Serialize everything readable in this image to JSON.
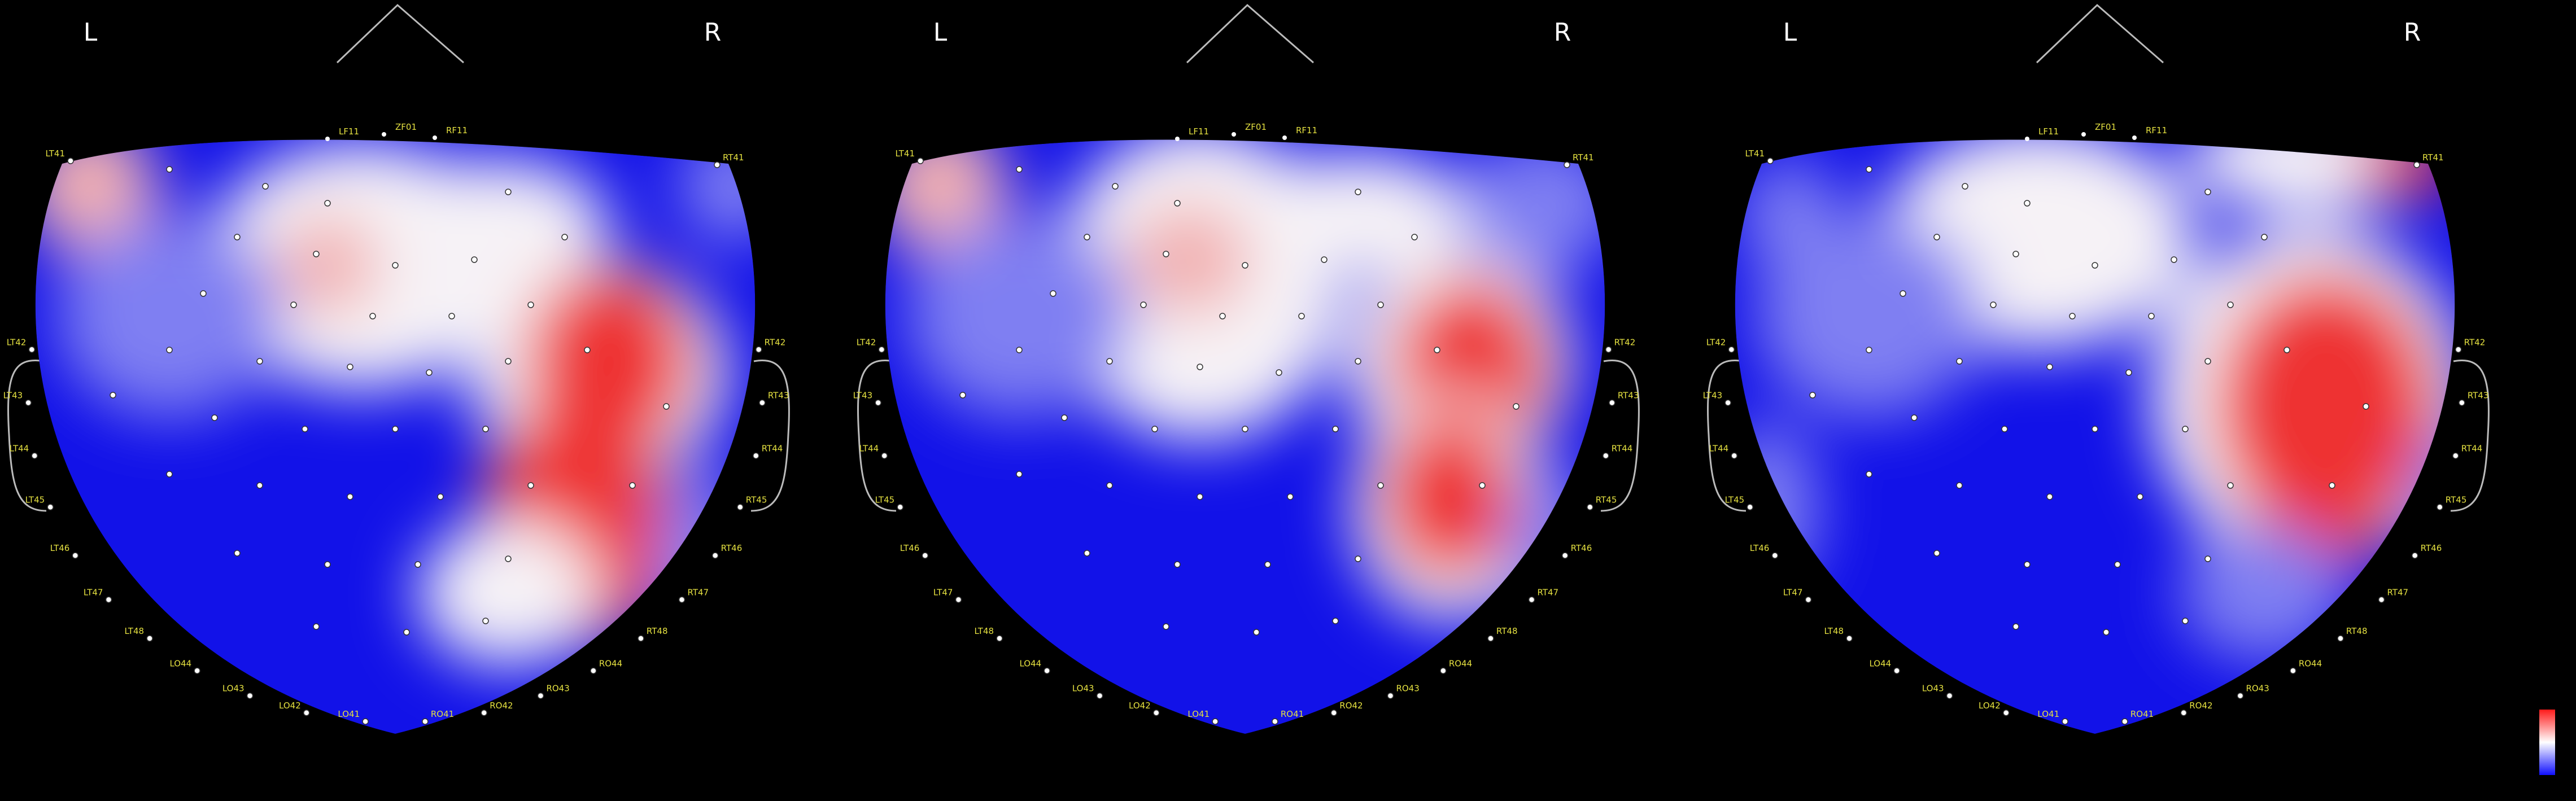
{
  "panels": [
    {
      "left_label": "L",
      "right_label": "R",
      "top_sensors": [
        "LF11",
        "ZF01",
        "RF11"
      ],
      "edge_sensors": [
        "LT41",
        "LT42",
        "LT43",
        "LT44",
        "LT45",
        "LT46",
        "LT47",
        "LT48",
        "LO44",
        "LO43",
        "LO42",
        "LO41",
        "RO41",
        "RO42",
        "RO43",
        "RO44",
        "RT48",
        "RT47",
        "RT46",
        "RT45",
        "RT44",
        "RT43",
        "RT42",
        "RT41"
      ]
    },
    {
      "left_label": "L",
      "right_label": "R",
      "top_sensors": [
        "LF11",
        "ZF01",
        "RF11"
      ],
      "edge_sensors": [
        "LT41",
        "LT42",
        "LT43",
        "LT44",
        "LT45",
        "LT46",
        "LT47",
        "LT48",
        "LO44",
        "LO43",
        "LO42",
        "LO41",
        "RO41",
        "RO42",
        "RO43",
        "RO44",
        "RT48",
        "RT47",
        "RT46",
        "RT45",
        "RT44",
        "RT43",
        "RT42",
        "RT41"
      ]
    },
    {
      "left_label": "L",
      "right_label": "R",
      "top_sensors": [
        "LF11",
        "ZF01",
        "RF11"
      ],
      "edge_sensors": [
        "LT41",
        "LT42",
        "LT43",
        "LT44",
        "LT45",
        "LT46",
        "LT47",
        "LT48",
        "LO44",
        "LO43",
        "LO42",
        "LO41",
        "RO41",
        "RO42",
        "RO43",
        "RO44",
        "RT48",
        "RT47",
        "RT46",
        "RT45",
        "RT44",
        "RT43",
        "RT42",
        "RT41"
      ]
    }
  ]
}
